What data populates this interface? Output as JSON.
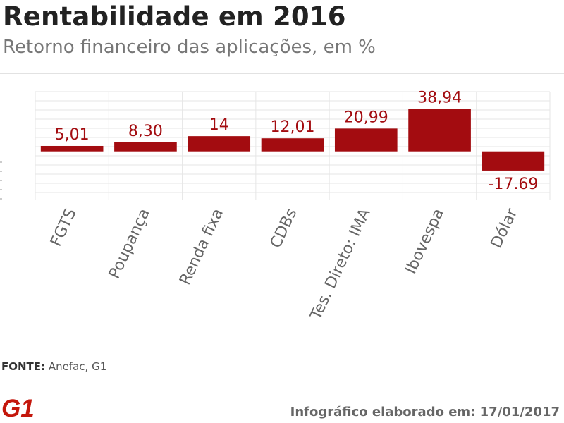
{
  "header": {
    "title": "Rentabilidade em 2016",
    "subtitle": "Retorno financeiro das aplicações, em %"
  },
  "chart_data": {
    "type": "bar",
    "title": "Rentabilidade em 2016",
    "subtitle": "Retorno financeiro das aplicações, em %",
    "categories": [
      "FGTS",
      "Poupança",
      "Renda fixa",
      "CDBs",
      "Tes. Direto: IMA",
      "Ibovespa",
      "Dólar"
    ],
    "values": [
      5.01,
      8.3,
      14,
      12.01,
      20.99,
      38.94,
      -17.69
    ],
    "data_labels": [
      "5,01",
      "8,30",
      "14",
      "12,01",
      "20,99",
      "38,94",
      "-17.69"
    ],
    "xlabel": "",
    "ylabel": "",
    "ylim": [
      -45,
      55
    ],
    "grid": true,
    "legend": "none",
    "bar_color": "#a30c10"
  },
  "footer": {
    "source_label": "FONTE:",
    "source_text": "Anefac, G1",
    "logo_text": "G1",
    "note": "Infográfico elaborado em: 17/01/2017"
  },
  "colors": {
    "bar": "#a30c10",
    "grid": "#e6e6e6",
    "logo": "#c4170c",
    "title": "#222222",
    "subtitle": "#777777"
  }
}
